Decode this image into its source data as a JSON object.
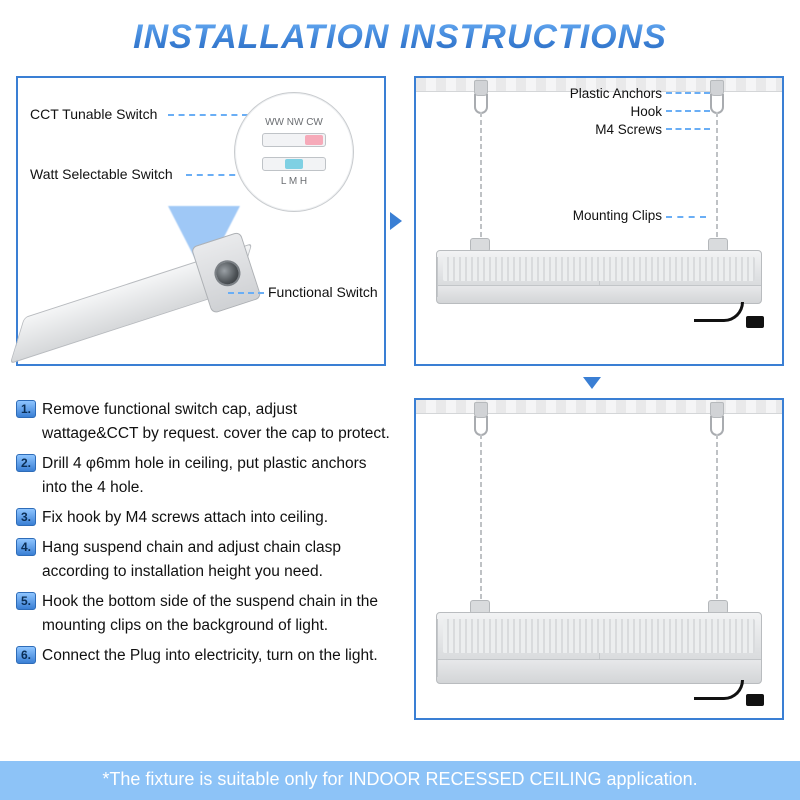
{
  "title": "INSTALLATION INSTRUCTIONS",
  "colors": {
    "accent": "#3a7fd4",
    "accent_light": "#6aaef5",
    "footer_bg": "#8dc3f7",
    "footer_text": "#ffffff",
    "text": "#111111"
  },
  "panel_tl": {
    "label_cct": "CCT Tunable Switch",
    "label_watt": "Watt Selectable Switch",
    "label_func": "Functional Switch",
    "dial_top_row": "WW  NW  CW",
    "dial_bottom_row": "L   M   H"
  },
  "panel_tr": {
    "label_anchors": "Plastic Anchors",
    "label_hook": "Hook",
    "label_screws": "M4 Screws",
    "label_clips": "Mounting Clips"
  },
  "steps": [
    {
      "n": "1.",
      "t": "Remove functional switch cap, adjust wattage&CCT by request. cover the cap to protect."
    },
    {
      "n": "2.",
      "t": "Drill 4 φ6mm hole in ceiling, put plastic anchors into the 4 hole."
    },
    {
      "n": "3.",
      "t": "Fix hook by M4 screws attach into ceiling."
    },
    {
      "n": "4.",
      "t": "Hang suspend chain and adjust chain clasp according to installation height you need."
    },
    {
      "n": "5.",
      "t": "Hook the bottom side of the suspend chain in the mounting clips on the background of light."
    },
    {
      "n": "6.",
      "t": "Connect the Plug into electricity, turn on the light."
    }
  ],
  "footer": "*The fixture is suitable only for INDOOR RECESSED CEILING application."
}
